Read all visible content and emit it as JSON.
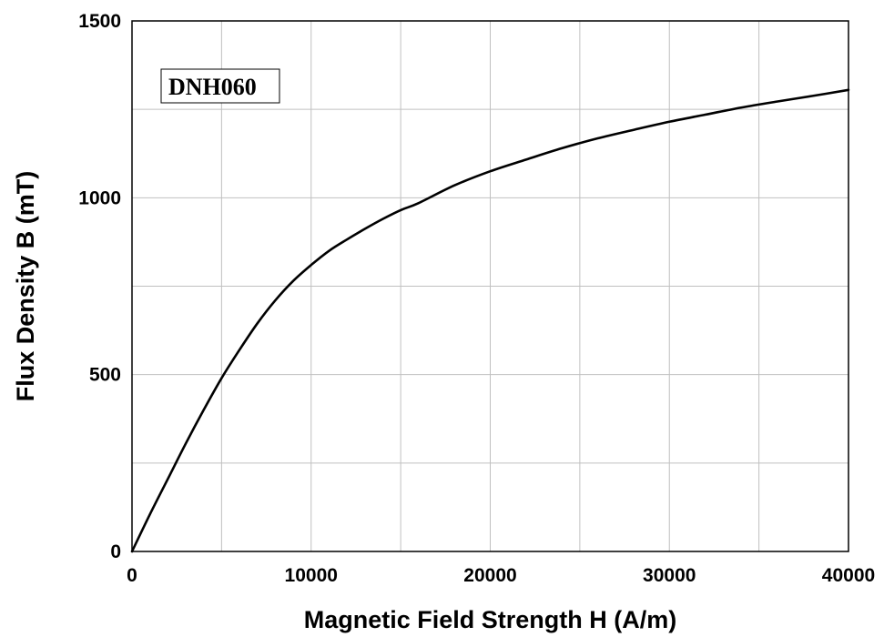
{
  "chart_data": {
    "type": "line",
    "title": "",
    "xlabel": "Magnetic Field Strength H (A/m)",
    "ylabel": "Flux Density B (mT)",
    "xlim": [
      0,
      40000
    ],
    "ylim": [
      0,
      1500
    ],
    "xticks": [
      0,
      10000,
      20000,
      30000,
      40000
    ],
    "xtick_labels": [
      "0",
      "10000",
      "20000",
      "30000",
      "40000"
    ],
    "yticks": [
      0,
      500,
      1000,
      1500
    ],
    "ytick_labels": [
      "0",
      "500",
      "1000",
      "1500"
    ],
    "minor_grid": true,
    "grid": true,
    "legend": {
      "label": "DNH060",
      "placement": "top-left",
      "boxed": true
    },
    "colors": {
      "line": "#000000",
      "grid": "#c0c0c0",
      "axes": "#000000"
    },
    "series": [
      {
        "name": "DNH060",
        "x": [
          0,
          1000,
          2000,
          3000,
          4000,
          5000,
          6000,
          7000,
          8000,
          9000,
          10000,
          11000,
          12000,
          13000,
          14000,
          15000,
          16000,
          18000,
          20000,
          22000,
          24000,
          26000,
          28000,
          30000,
          32000,
          34000,
          36000,
          38000,
          40000
        ],
        "y": [
          0,
          105,
          205,
          305,
          400,
          490,
          570,
          645,
          710,
          765,
          810,
          850,
          882,
          912,
          940,
          965,
          985,
          1035,
          1075,
          1108,
          1140,
          1168,
          1192,
          1215,
          1235,
          1255,
          1272,
          1288,
          1305
        ]
      }
    ]
  }
}
